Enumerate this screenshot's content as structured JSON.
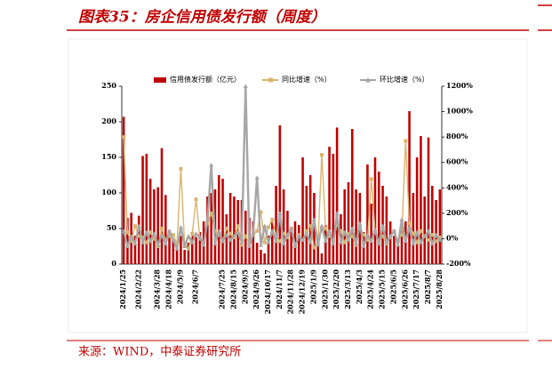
{
  "chart_data": {
    "type": "bar-line",
    "title": "图表35：房企信用债发行额（周度）",
    "categories": [
      "2024/1/25",
      null,
      null,
      null,
      "2024/2/22",
      null,
      null,
      null,
      null,
      "2024/3/28",
      null,
      null,
      "2024/4/18",
      null,
      null,
      "2024/5/9",
      null,
      null,
      null,
      "2024/6/7",
      null,
      null,
      null,
      null,
      null,
      null,
      "2024/7/25",
      null,
      null,
      "2024/8/15",
      null,
      null,
      "2024/9/5",
      null,
      null,
      "2024/9/26",
      null,
      null,
      "2024/10/17",
      null,
      null,
      "2024/11/7",
      null,
      null,
      "2024/11/28",
      null,
      null,
      "2024/12/19",
      null,
      null,
      "2025/1/9",
      null,
      null,
      "2025/1/30",
      null,
      null,
      "2025/2/20",
      null,
      null,
      "2025/3/13",
      null,
      null,
      "2025/4/3",
      null,
      null,
      "2025/4/24",
      null,
      null,
      "2025/5/15",
      null,
      null,
      "2025/6/5",
      null,
      null,
      "2025/6/26",
      null,
      null,
      "2025/7/17",
      null,
      null,
      "2025/8/7",
      null,
      null,
      "2025/8/28"
    ],
    "series": [
      {
        "name": "信用债发行额（亿元）",
        "type": "bar",
        "color": "#c00000",
        "values": [
          207,
          65,
          72,
          40,
          68,
          152,
          155,
          120,
          105,
          108,
          163,
          97,
          48,
          35,
          30,
          40,
          20,
          30,
          40,
          38,
          45,
          60,
          95,
          100,
          105,
          125,
          120,
          70,
          100,
          95,
          90,
          90,
          75,
          65,
          60,
          30,
          20,
          15,
          40,
          60,
          110,
          195,
          105,
          75,
          45,
          60,
          55,
          150,
          110,
          125,
          100,
          30,
          15,
          55,
          165,
          155,
          192,
          70,
          105,
          115,
          190,
          105,
          100,
          45,
          140,
          85,
          150,
          130,
          110,
          95,
          60,
          40,
          35,
          55,
          60,
          215,
          100,
          150,
          180,
          95,
          178,
          110,
          90,
          105
        ]
      },
      {
        "name": "同比增速（%）",
        "type": "line",
        "axis": "y2",
        "color": "#dcb46e",
        "marker": "square",
        "values": [
          800,
          50,
          -20,
          100,
          20,
          10,
          -30,
          50,
          0,
          -60,
          80,
          -10,
          20,
          30,
          -40,
          550,
          -50,
          -80,
          40,
          310,
          0,
          -30,
          120,
          200,
          60,
          30,
          -20,
          80,
          40,
          10,
          100,
          -50,
          20,
          -40,
          30,
          60,
          210,
          -30,
          90,
          150,
          20,
          -20,
          40,
          10,
          80,
          -60,
          30,
          -10,
          60,
          100,
          -70,
          -40,
          660,
          80,
          20,
          -20,
          110,
          60,
          -30,
          40,
          20,
          -50,
          90,
          30,
          -10,
          470,
          50,
          -30,
          20,
          -40,
          10,
          60,
          -20,
          30,
          770,
          120,
          40,
          -30,
          60,
          20,
          -10,
          30,
          -20,
          10
        ]
      },
      {
        "name": "环比增速（%）",
        "type": "line",
        "axis": "y2",
        "color": "#a6a6a6",
        "marker": "triangle",
        "values": [
          60,
          -60,
          20,
          -40,
          100,
          -30,
          50,
          -20,
          40,
          -50,
          30,
          -40,
          60,
          -10,
          -80,
          90,
          -60,
          20,
          -30,
          40,
          10,
          -50,
          150,
          580,
          -40,
          60,
          -20,
          30,
          -10,
          20,
          50,
          -30,
          1200,
          -60,
          40,
          480,
          -50,
          100,
          -30,
          60,
          -20,
          200,
          -40,
          30,
          80,
          -60,
          20,
          -10,
          40,
          -30,
          150,
          -50,
          100,
          -20,
          60,
          -40,
          200,
          -30,
          50,
          -10,
          80,
          -40,
          120,
          -60,
          30,
          -20,
          70,
          -40,
          100,
          -30,
          20,
          60,
          -50,
          150,
          -20,
          90,
          -40,
          50,
          -30,
          20,
          60,
          -40,
          30,
          -10
        ]
      }
    ],
    "ylim": [
      0,
      250
    ],
    "yticks": [
      0,
      50,
      100,
      150,
      200,
      250
    ],
    "y2lim": [
      -200,
      1200
    ],
    "y2ticks": [
      {
        "value": -200,
        "label": "-200%"
      },
      {
        "value": 0,
        "label": "0%"
      },
      {
        "value": 200,
        "label": "200%"
      },
      {
        "value": 400,
        "label": "400%"
      },
      {
        "value": 600,
        "label": "600%"
      },
      {
        "value": 800,
        "label": "800%"
      },
      {
        "value": 1000,
        "label": "1000%"
      },
      {
        "value": 1200,
        "label": "1200%"
      }
    ]
  },
  "source": "来源：WIND，中泰证券研究所"
}
